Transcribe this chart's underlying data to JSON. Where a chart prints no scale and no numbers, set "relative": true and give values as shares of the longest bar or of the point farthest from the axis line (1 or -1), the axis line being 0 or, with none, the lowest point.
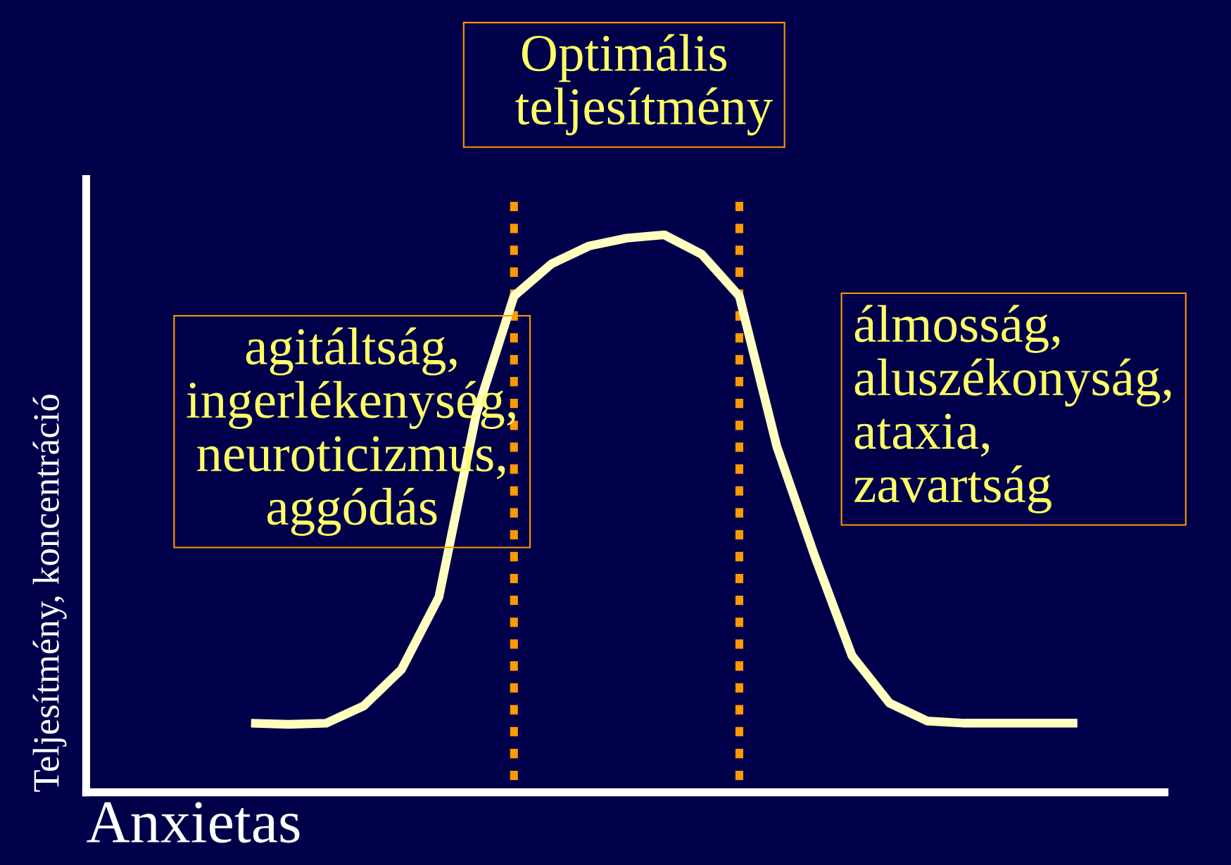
{
  "chart_data": {
    "type": "line",
    "relative": true,
    "xlabel": "Anxietas",
    "ylabel": "Teljesítmény, koncentráció",
    "categories": [
      null,
      null,
      null,
      null,
      null,
      null,
      null,
      null,
      null,
      null,
      null,
      null,
      null,
      null,
      null,
      null,
      null,
      null,
      null,
      null,
      null,
      null,
      null
    ],
    "tick_labels": false,
    "legend": false,
    "marker": "none",
    "line_style": "solid",
    "series": [
      {
        "color": "#ffffc0",
        "values": [
          0.124,
          0.122,
          0.124,
          0.155,
          0.22,
          0.35,
          0.68,
          0.89,
          0.948,
          0.98,
          0.994,
          1.0,
          0.965,
          0.89,
          0.62,
          0.425,
          0.245,
          0.16,
          0.128,
          0.124,
          0.124,
          0.124,
          0.124
        ]
      }
    ],
    "annotations": [
      "Optimális\n   teljesítmény",
      "agitáltság,\ningerlékenység,\nneuroticizmus,\naggódás",
      "álmosság,\naluszékonyság,\nataxia,\nzavartság"
    ]
  }
}
